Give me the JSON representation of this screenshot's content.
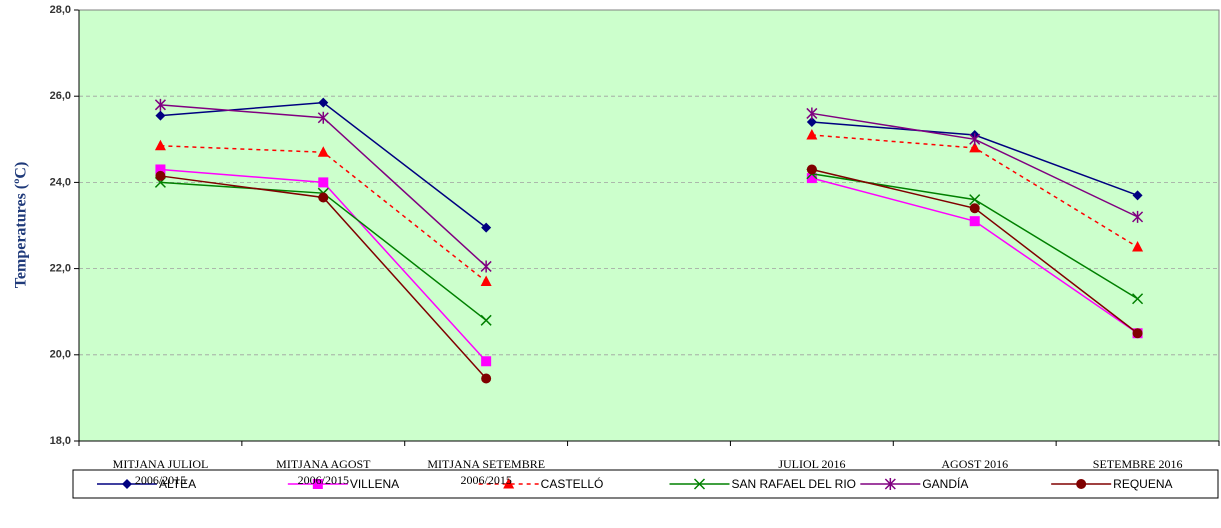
{
  "chart_data": {
    "type": "line",
    "y_label": "Temperatures (ºC)",
    "categories": [
      "MITJANA JULIOL\n2006/2015",
      "MITJANA AGOST\n2006/2015",
      "MITJANA SETEMBRE\n2006/2015",
      null,
      "JULIOL 2016",
      "AGOST 2016",
      "SETEMBRE 2016"
    ],
    "ylim": [
      18,
      28
    ],
    "yticks": [
      {
        "value": 18,
        "label": "18,0"
      },
      {
        "value": 20,
        "label": "20,0"
      },
      {
        "value": 22,
        "label": "22,0"
      },
      {
        "value": 24,
        "label": "24,0"
      },
      {
        "value": 26,
        "label": "26,0"
      },
      {
        "value": 28,
        "label": "28,0"
      }
    ],
    "grid": true,
    "background": "#ccffcc",
    "legend": "bottom",
    "series": [
      {
        "name": "ALTEA",
        "color": "#000080",
        "marker": "diamond",
        "line_style": "solid",
        "values": [
          25.55,
          25.85,
          22.95,
          null,
          25.4,
          25.1,
          23.7
        ]
      },
      {
        "name": "VILLENA",
        "color": "#ff00ff",
        "marker": "square",
        "line_style": "solid",
        "values": [
          24.3,
          24.0,
          19.85,
          null,
          24.1,
          23.1,
          20.5
        ]
      },
      {
        "name": "CASTELLÓ",
        "color": "#ff0000",
        "marker": "triangle",
        "line_style": "dashed",
        "values": [
          24.85,
          24.7,
          21.7,
          null,
          25.1,
          24.8,
          22.5
        ]
      },
      {
        "name": "SAN RAFAEL DEL RIO",
        "color": "#008000",
        "marker": "x",
        "line_style": "solid",
        "values": [
          24.0,
          23.75,
          20.8,
          null,
          24.2,
          23.6,
          21.3
        ]
      },
      {
        "name": "GANDÍA",
        "color": "#800080",
        "marker": "asterisk",
        "line_style": "solid",
        "values": [
          25.8,
          25.5,
          22.05,
          null,
          25.6,
          25.0,
          23.2
        ]
      },
      {
        "name": "REQUENA",
        "color": "#800000",
        "marker": "circle",
        "line_style": "solid",
        "values": [
          24.15,
          23.65,
          19.45,
          null,
          24.3,
          23.4,
          20.5
        ]
      }
    ]
  }
}
